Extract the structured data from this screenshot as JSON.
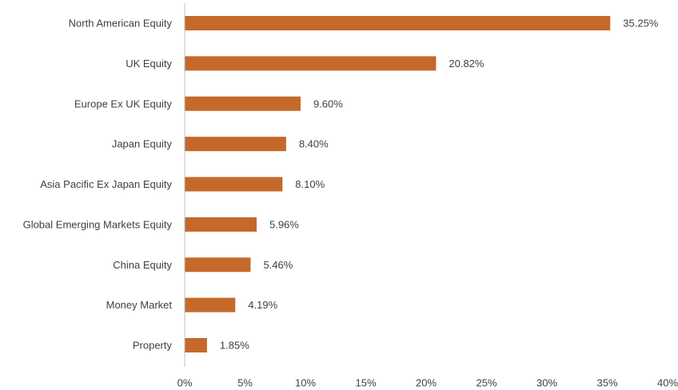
{
  "chart_data": {
    "type": "bar",
    "orientation": "horizontal",
    "title": "",
    "xlabel": "",
    "ylabel": "",
    "categories": [
      "North American Equity",
      "UK Equity",
      "Europe Ex UK Equity",
      "Japan Equity",
      "Asia Pacific Ex Japan Equity",
      "Global Emerging Markets Equity",
      "China Equity",
      "Money Market",
      "Property"
    ],
    "values": [
      35.25,
      20.82,
      9.6,
      8.4,
      8.1,
      5.96,
      5.46,
      4.19,
      1.85
    ],
    "value_labels": [
      "35.25%",
      "20.82%",
      "9.60%",
      "8.40%",
      "8.10%",
      "5.96%",
      "5.46%",
      "4.19%",
      "1.85%"
    ],
    "xlim": [
      0,
      40
    ],
    "x_ticks": [
      0,
      5,
      10,
      15,
      20,
      25,
      30,
      35,
      40
    ],
    "x_tick_labels": [
      "0%",
      "5%",
      "10%",
      "15%",
      "20%",
      "25%",
      "30%",
      "35%",
      "40%"
    ],
    "grid": false,
    "legend": "none",
    "colors": {
      "bar": "#C5692B",
      "axis": "#BFBFBF",
      "text": "#404040"
    }
  }
}
